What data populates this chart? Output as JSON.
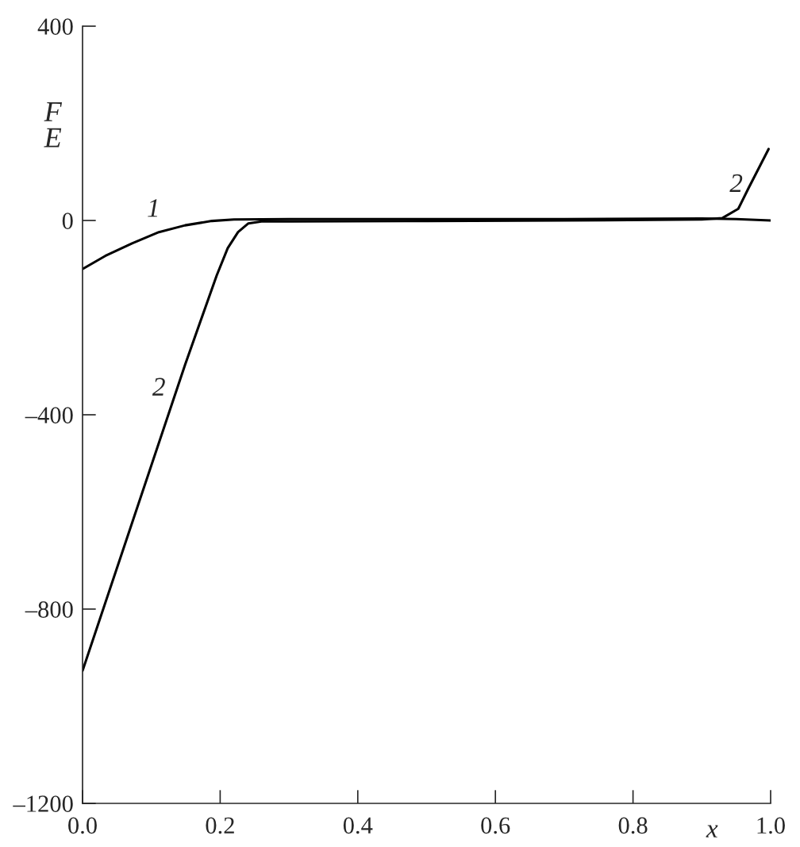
{
  "chart_data": {
    "type": "line",
    "xlabel": "x",
    "ylabel": "F\nE",
    "xlim": [
      0.0,
      1.0
    ],
    "xticks": [
      {
        "value": 0.0,
        "label": "0.0"
      },
      0.2,
      0.4,
      0.6,
      0.8,
      {
        "value": 1.0,
        "label": "1.0"
      }
    ],
    "ylim": [
      -1200,
      400
    ],
    "yticks": [
      {
        "value": -1200,
        "label": "–1200"
      },
      {
        "value": -800,
        "label": "–800"
      },
      {
        "value": -400,
        "label": "–400"
      },
      0,
      400
    ],
    "grid": false,
    "legend": false,
    "marker": "none",
    "line_style": "solid",
    "series": [
      {
        "color": "#000000",
        "x": [
          0.0,
          0.033,
          0.072,
          0.111,
          0.149,
          0.188,
          0.22,
          0.3,
          0.5,
          0.7,
          0.9,
          0.95,
          1.0
        ],
        "values": [
          -100,
          -73,
          -47,
          -24,
          -10,
          -1,
          2,
          3,
          3,
          3,
          4,
          3,
          0
        ]
      },
      {
        "color": "#000000",
        "x": [
          0.0,
          0.149,
          0.195,
          0.211,
          0.226,
          0.241,
          0.26,
          0.3,
          0.5,
          0.7,
          0.9,
          0.93,
          0.953,
          0.968,
          0.984,
          0.997
        ],
        "values": [
          -927,
          -297,
          -113,
          -57,
          -24,
          -6,
          -2,
          -2,
          -1,
          0,
          2,
          5,
          24,
          67,
          111,
          147
        ]
      }
    ],
    "annotations": [
      "1",
      "2",
      "2"
    ]
  }
}
